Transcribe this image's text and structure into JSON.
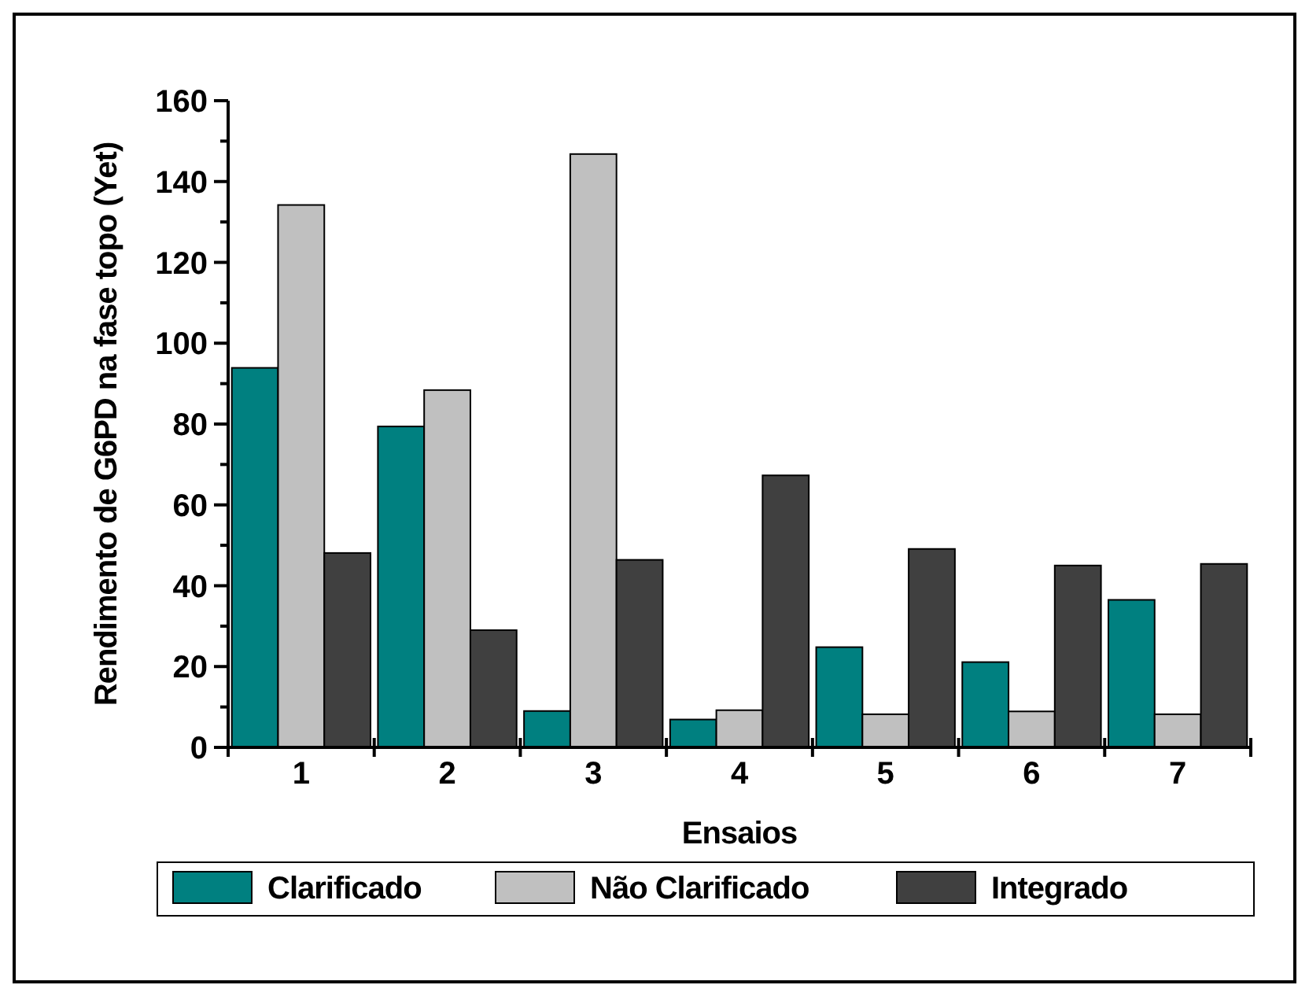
{
  "chart_data": {
    "type": "bar",
    "xlabel": "Ensaios",
    "ylabel": "Rendimento de G6PD na fase topo (Yet)",
    "categories": [
      "1",
      "2",
      "3",
      "4",
      "5",
      "6",
      "7"
    ],
    "series": [
      {
        "name": "Clarificado",
        "color": "#008080",
        "values": [
          93.9,
          79.4,
          9,
          6.9,
          24.8,
          21.1,
          36.5
        ]
      },
      {
        "name": "Não Clarificado",
        "color": "#c0c0c0",
        "values": [
          134.2,
          88.4,
          146.8,
          9.2,
          8.2,
          8.9,
          8.2
        ]
      },
      {
        "name": "Integrado",
        "color": "#404040",
        "values": [
          48.1,
          29,
          46.4,
          67.3,
          49.1,
          45,
          45.4
        ]
      }
    ],
    "ylim": [
      0,
      160
    ],
    "yticks": [
      0,
      {
        "value": 10,
        "label": null
      },
      20,
      {
        "value": 30,
        "label": null
      },
      40,
      {
        "value": 50,
        "label": null
      },
      60,
      {
        "value": 70,
        "label": null
      },
      80,
      {
        "value": 90,
        "label": null
      },
      100,
      {
        "value": 110,
        "label": null
      },
      120,
      {
        "value": 130,
        "label": null
      },
      140,
      {
        "value": 150,
        "label": null
      },
      160
    ],
    "grid": false,
    "legend": "bottom"
  }
}
